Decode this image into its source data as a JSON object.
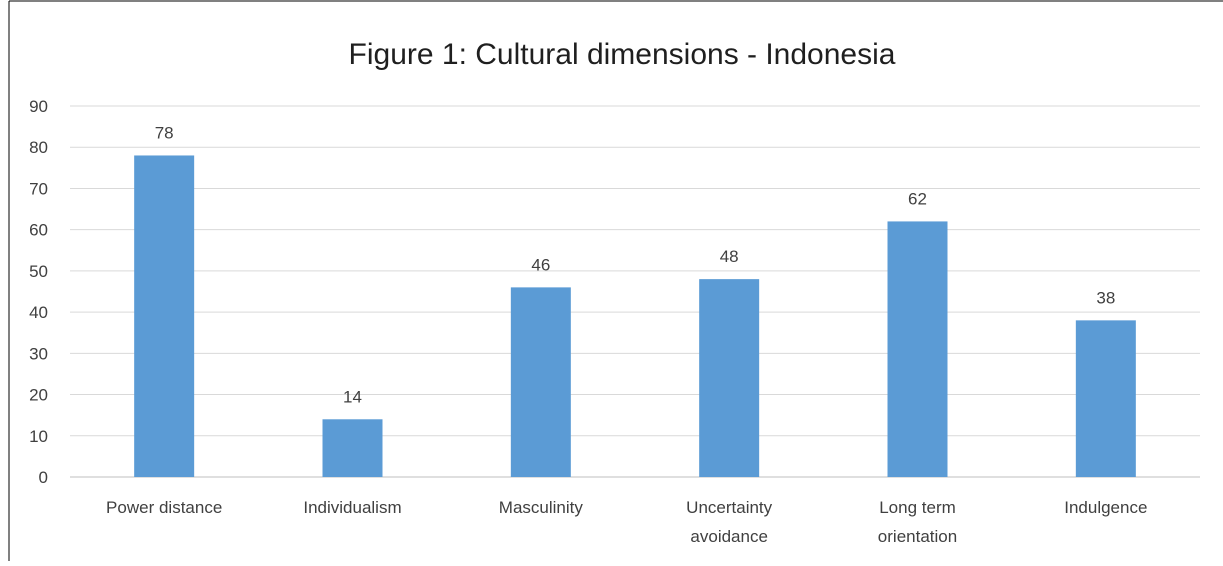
{
  "chart_data": {
    "type": "bar",
    "title": "Figure 1: Cultural dimensions - Indonesia",
    "xlabel": "",
    "ylabel": "",
    "categories": [
      [
        "Power distance"
      ],
      [
        "Individualism"
      ],
      [
        "Masculinity"
      ],
      [
        "Uncertainty",
        "avoidance"
      ],
      [
        "Long term",
        "orientation"
      ],
      [
        "Indulgence"
      ]
    ],
    "values": [
      78,
      14,
      46,
      48,
      62,
      38
    ],
    "data_labels": [
      "78",
      "14",
      "46",
      "48",
      "62",
      "38"
    ],
    "ylim": [
      0,
      90
    ],
    "yticks": [
      "0",
      "10",
      "20",
      "30",
      "40",
      "50",
      "60",
      "70",
      "80",
      "90"
    ],
    "grid": true,
    "legend": "none",
    "colors": {
      "bar": "#5b9bd5",
      "grid": "#d9d9d9",
      "axis": "#bfbfbf",
      "text": "#404040",
      "title": "#1f1f1f",
      "border": "#000000"
    }
  }
}
